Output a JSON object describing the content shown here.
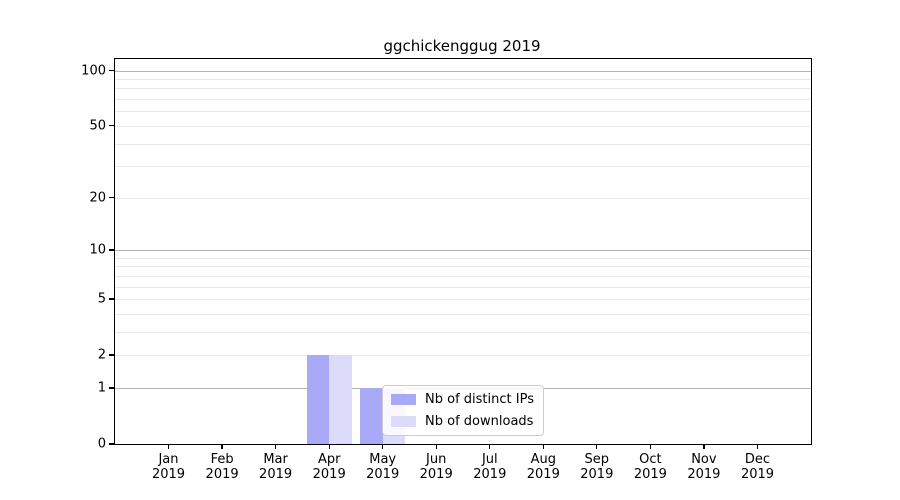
{
  "title": "ggchickenggug 2019",
  "chart_data": {
    "type": "bar",
    "title": "ggchickenggug 2019",
    "categories": [
      "Jan",
      "Feb",
      "Mar",
      "Apr",
      "May",
      "Jun",
      "Jul",
      "Aug",
      "Sep",
      "Oct",
      "Nov",
      "Dec"
    ],
    "year": "2019",
    "series": [
      {
        "name": "Nb of distinct IPs",
        "color": "#a9a9f7",
        "values": [
          0,
          0,
          0,
          2,
          1,
          0,
          0,
          0,
          0,
          0,
          0,
          0
        ]
      },
      {
        "name": "Nb of downloads",
        "color": "#dcdcfa",
        "values": [
          0,
          0,
          0,
          2,
          1,
          0,
          0,
          0,
          0,
          0,
          0,
          0
        ]
      }
    ],
    "yscale": "log1p",
    "ylim": [
      0,
      100
    ],
    "ytick_values": [
      0,
      1,
      2,
      5,
      10,
      20,
      50,
      100
    ],
    "ytick_labels": [
      "0",
      "1",
      "2",
      "5",
      "10",
      "20",
      "50",
      "100"
    ],
    "major_grid_values": [
      1,
      10,
      100
    ],
    "minor_grid_values": [
      2,
      3,
      4,
      5,
      6,
      7,
      8,
      9,
      20,
      30,
      40,
      50,
      60,
      70,
      80,
      90
    ],
    "grid": true,
    "legend_position": "lower center",
    "colors": {
      "major_grid": "#b3b3b3",
      "minor_grid": "#e9e9e9",
      "spine": "#000000",
      "legend_border": "#cccccc"
    }
  }
}
